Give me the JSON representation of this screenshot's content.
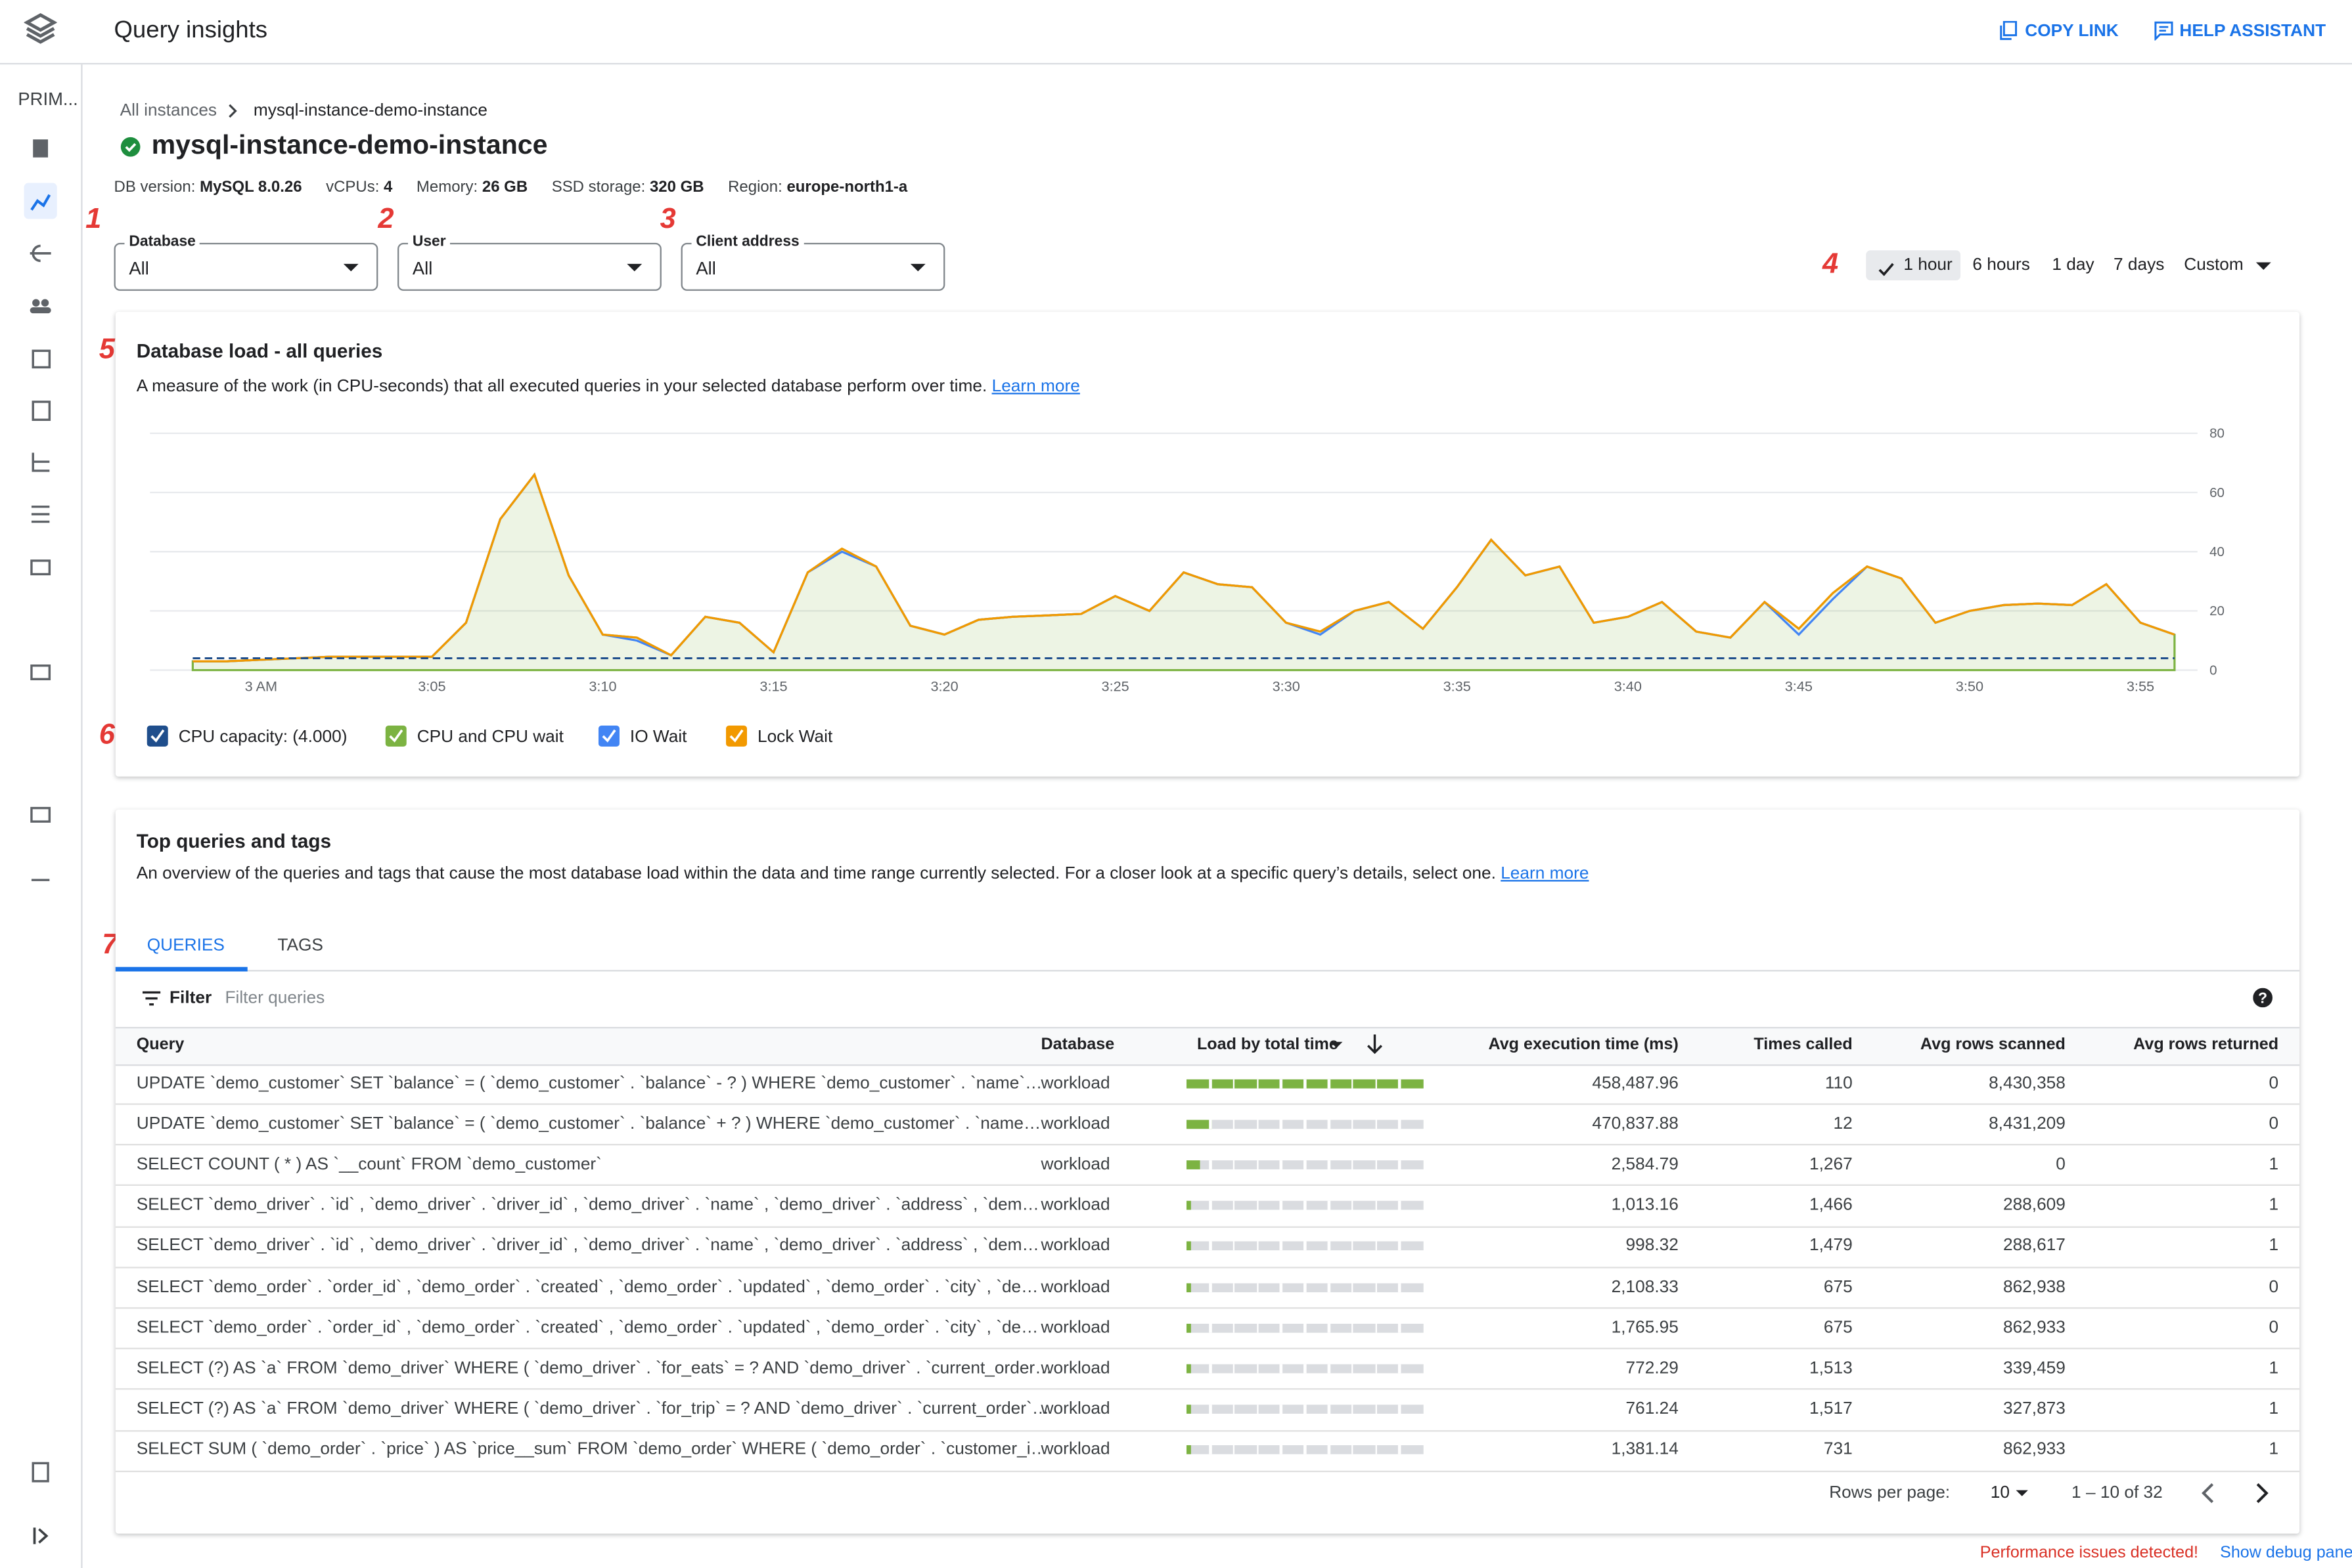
{
  "header": {
    "title": "Query insights",
    "actions": [
      "COPY LINK",
      "HELP ASSISTANT"
    ]
  },
  "sidebar": {
    "label": "PRIM..."
  },
  "breadcrumb": [
    "All instances",
    "mysql-instance-demo-instance"
  ],
  "instance": {
    "name": "mysql-instance-demo-instance",
    "details": [
      {
        "label": "DB version:",
        "value": "MySQL 8.0.26"
      },
      {
        "label": "vCPUs:",
        "value": "4"
      },
      {
        "label": "Memory:",
        "value": "26 GB"
      },
      {
        "label": "SSD storage:",
        "value": "320 GB"
      },
      {
        "label": "Region:",
        "value": "europe-north1-a"
      }
    ]
  },
  "filters": [
    {
      "label": "Database",
      "value": "All"
    },
    {
      "label": "User",
      "value": "All"
    },
    {
      "label": "Client address",
      "value": "All"
    }
  ],
  "time_ranges": {
    "options": [
      "1 hour",
      "6 hours",
      "1 day",
      "7 days",
      "Custom"
    ],
    "selected": 0
  },
  "annotations": [
    "1",
    "2",
    "3",
    "4",
    "5",
    "6",
    "7"
  ],
  "load_card": {
    "title": "Database load - all queries",
    "description": "A measure of the work (in CPU-seconds) that all executed queries in your selected database perform over time.",
    "link": "Learn more"
  },
  "chart_data": {
    "type": "line",
    "x": [
      -2,
      -1,
      0,
      1,
      2,
      3,
      4,
      5,
      6,
      7,
      8,
      9,
      10,
      11,
      12,
      13,
      14,
      15,
      16,
      17,
      18,
      19,
      20,
      21,
      22,
      23,
      24,
      25,
      26,
      27,
      28,
      29,
      30,
      31,
      32,
      33,
      34,
      35,
      36,
      37,
      38,
      39,
      40,
      41,
      42,
      43,
      44,
      45,
      46,
      47,
      48,
      49,
      50,
      51,
      52,
      53,
      54,
      55,
      56
    ],
    "xlim": [
      -3.25,
      56.67
    ],
    "xticks": [
      {
        "value": 0,
        "label": "3 AM"
      },
      {
        "value": 5,
        "label": "3:05"
      },
      {
        "value": 10,
        "label": "3:10"
      },
      {
        "value": 15,
        "label": "3:15"
      },
      {
        "value": 20,
        "label": "3:20"
      },
      {
        "value": 25,
        "label": "3:25"
      },
      {
        "value": 30,
        "label": "3:30"
      },
      {
        "value": 35,
        "label": "3:35"
      },
      {
        "value": 40,
        "label": "3:40"
      },
      {
        "value": 45,
        "label": "3:45"
      },
      {
        "value": 50,
        "label": "3:50"
      },
      {
        "value": 55,
        "label": "3:55"
      }
    ],
    "ylim": [
      0,
      80
    ],
    "yticks": [
      0,
      20,
      40,
      60,
      80
    ],
    "grid": true,
    "series": [
      {
        "name": "CPU capacity: (4.000)",
        "color": "#1f4e8c",
        "dashed": true,
        "values": [
          4,
          4,
          4,
          4,
          4,
          4,
          4,
          4,
          4,
          4,
          4,
          4,
          4,
          4,
          4,
          4,
          4,
          4,
          4,
          4,
          4,
          4,
          4,
          4,
          4,
          4,
          4,
          4,
          4,
          4,
          4,
          4,
          4,
          4,
          4,
          4,
          4,
          4,
          4,
          4,
          4,
          4,
          4,
          4,
          4,
          4,
          4,
          4,
          4,
          4,
          4,
          4,
          4,
          4,
          4,
          4,
          4,
          4,
          4
        ]
      },
      {
        "name": "CPU and CPU wait",
        "color": "#7cb342",
        "area": true,
        "values": [
          3,
          3,
          3.5,
          4,
          4.5,
          4.5,
          4.5,
          4.5,
          16,
          51,
          66,
          32,
          12,
          11,
          5,
          18,
          16,
          6,
          33,
          41,
          35,
          15,
          12,
          17,
          18,
          18.5,
          19,
          25,
          20,
          33,
          29,
          28,
          16,
          13,
          20,
          23,
          14,
          28,
          44,
          32,
          35,
          16,
          18,
          23,
          13,
          11,
          23,
          14,
          26,
          35,
          31,
          16,
          20,
          22,
          22.5,
          22,
          29,
          16,
          12
        ]
      },
      {
        "name": "IO Wait",
        "color": "#4285f4",
        "values": [
          3,
          3,
          3.5,
          4,
          4.5,
          4.5,
          4.5,
          4.5,
          16,
          51,
          66,
          32,
          12,
          10,
          5,
          18,
          16,
          6,
          33,
          40,
          35,
          15,
          12,
          17,
          18,
          18.5,
          19,
          25,
          20,
          33,
          29,
          28,
          16,
          12,
          20,
          23,
          14,
          28,
          44,
          32,
          35,
          16,
          18,
          23,
          13,
          11,
          23,
          12,
          24,
          35,
          31,
          16,
          20,
          22,
          22.5,
          22,
          29,
          16,
          12
        ]
      },
      {
        "name": "Lock Wait",
        "color": "#f29900",
        "values": [
          3,
          3,
          3.5,
          4,
          4.5,
          4.5,
          4.5,
          4.5,
          16,
          51,
          66,
          32,
          12,
          11,
          5,
          18,
          16,
          6,
          33,
          41,
          35,
          15,
          12,
          17,
          18,
          18.5,
          19,
          25,
          20,
          33,
          29,
          28,
          16,
          13,
          20,
          23,
          14,
          28,
          44,
          32,
          35,
          16,
          18,
          23,
          13,
          11,
          23,
          14,
          26,
          35,
          31,
          16,
          20,
          22,
          22.5,
          22,
          29,
          16,
          12
        ]
      }
    ]
  },
  "queries_card": {
    "title": "Top queries and tags",
    "description": "An overview of the queries and tags that cause the most database load within the data and time range currently selected. For a closer look at a specific query’s details, select one.",
    "link": "Learn more",
    "tabs": [
      "QUERIES",
      "TAGS"
    ],
    "filter_label": "Filter",
    "filter_placeholder": "Filter queries",
    "columns": [
      "Query",
      "Database",
      "Load by total time",
      "Avg execution time (ms)",
      "Times called",
      "Avg rows scanned",
      "Avg rows returned"
    ],
    "load_color": "#7cb342",
    "rows": [
      {
        "query": "UPDATE `demo_customer` SET `balance` = ( `demo_customer` . `balance` - ? ) WHERE `demo_customer` . `name`…",
        "database": "workload",
        "load": 100,
        "avg_execution_time": "458,487.96",
        "times_called": "110",
        "avg_rows_scanned": "8,430,358",
        "avg_rows_returned": "0"
      },
      {
        "query": "UPDATE `demo_customer` SET `balance` = ( `demo_customer` . `balance` + ? ) WHERE `demo_customer` . `name…",
        "database": "workload",
        "load": 11,
        "avg_execution_time": "470,837.88",
        "times_called": "12",
        "avg_rows_scanned": "8,431,209",
        "avg_rows_returned": "0"
      },
      {
        "query": "SELECT COUNT ( * ) AS `__count` FROM `demo_customer`",
        "database": "workload",
        "load": 6,
        "avg_execution_time": "2,584.79",
        "times_called": "1,267",
        "avg_rows_scanned": "0",
        "avg_rows_returned": "1"
      },
      {
        "query": "SELECT `demo_driver` . `id` , `demo_driver` . `driver_id` , `demo_driver` . `name` , `demo_driver` . `address` , `dem…",
        "database": "workload",
        "load": 2,
        "avg_execution_time": "1,013.16",
        "times_called": "1,466",
        "avg_rows_scanned": "288,609",
        "avg_rows_returned": "1"
      },
      {
        "query": "SELECT `demo_driver` . `id` , `demo_driver` . `driver_id` , `demo_driver` . `name` , `demo_driver` . `address` , `dem…",
        "database": "workload",
        "load": 2,
        "avg_execution_time": "998.32",
        "times_called": "1,479",
        "avg_rows_scanned": "288,617",
        "avg_rows_returned": "1"
      },
      {
        "query": "SELECT `demo_order` . `order_id` , `demo_order` . `created` , `demo_order` . `updated` , `demo_order` . `city` , `de…",
        "database": "workload",
        "load": 2,
        "avg_execution_time": "2,108.33",
        "times_called": "675",
        "avg_rows_scanned": "862,938",
        "avg_rows_returned": "0"
      },
      {
        "query": "SELECT `demo_order` . `order_id` , `demo_order` . `created` , `demo_order` . `updated` , `demo_order` . `city` , `de…",
        "database": "workload",
        "load": 2,
        "avg_execution_time": "1,765.95",
        "times_called": "675",
        "avg_rows_scanned": "862,933",
        "avg_rows_returned": "0"
      },
      {
        "query": "SELECT (?) AS `a` FROM `demo_driver` WHERE ( `demo_driver` . `for_eats` = ? AND `demo_driver` . `current_order…",
        "database": "workload",
        "load": 2,
        "avg_execution_time": "772.29",
        "times_called": "1,513",
        "avg_rows_scanned": "339,459",
        "avg_rows_returned": "1"
      },
      {
        "query": "SELECT (?) AS `a` FROM `demo_driver` WHERE ( `demo_driver` . `for_trip` = ? AND `demo_driver` . `current_order`…",
        "database": "workload",
        "load": 2,
        "avg_execution_time": "761.24",
        "times_called": "1,517",
        "avg_rows_scanned": "327,873",
        "avg_rows_returned": "1"
      },
      {
        "query": "SELECT SUM ( `demo_order` . `price` ) AS `price__sum` FROM `demo_order` WHERE ( `demo_order` . `customer_i…",
        "database": "workload",
        "load": 2,
        "avg_execution_time": "1,381.14",
        "times_called": "731",
        "avg_rows_scanned": "862,933",
        "avg_rows_returned": "1"
      }
    ],
    "pagination": {
      "rows_per_page_label": "Rows per page:",
      "rows_per_page": "10",
      "range": "1 – 10 of 32"
    }
  },
  "footer": {
    "warning": "Performance issues detected!",
    "debug": "Show debug panel"
  }
}
